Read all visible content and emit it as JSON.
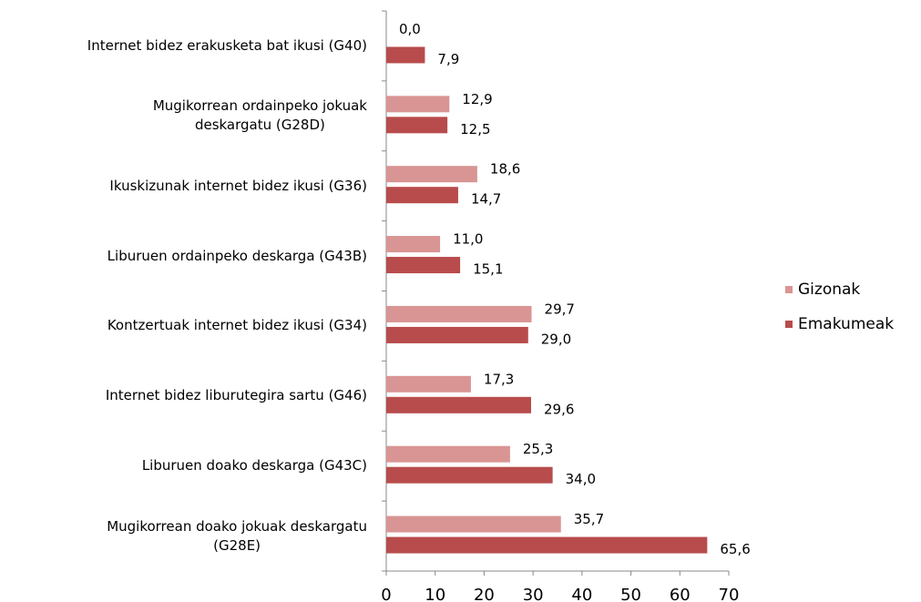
{
  "chart_data": {
    "type": "bar",
    "orientation": "horizontal",
    "categories": [
      "Internet bidez erakusketa bat ikusi (G40)",
      "Mugikorrean ordainpeko jokuak\ndeskargatu (G28D)",
      "Ikuskizunak internet bidez ikusi (G36)",
      "Liburuen ordainpeko deskarga (G43B)",
      "Kontzertuak internet bidez ikusi (G34)",
      "Internet bidez liburutegira sartu (G46)",
      "Liburuen doako deskarga (G43C)",
      "Mugikorrean doako jokuak deskargatu\n(G28E)"
    ],
    "series": [
      {
        "name": "Gizonak",
        "color": "#d99594",
        "values": [
          0,
          12.9,
          18.6,
          11,
          29.7,
          17.3,
          25.3,
          35.7
        ],
        "value_labels": [
          "0,0",
          "12,9",
          "18,6",
          "11,0",
          "29,7",
          "17,3",
          "25,3",
          "35,7"
        ]
      },
      {
        "name": "Emakumeak",
        "color": "#b84c4c",
        "values": [
          7.9,
          12.5,
          14.7,
          15.1,
          29.0,
          29.6,
          34.0,
          65.6
        ],
        "value_labels": [
          "7,9",
          "12,5",
          "14,7",
          "15,1",
          "29,0",
          "29,6",
          "34,0",
          "65,6"
        ]
      }
    ],
    "xlim": [
      0,
      70
    ],
    "xticks": [
      0,
      10,
      20,
      30,
      40,
      50,
      60,
      70
    ],
    "legend": "right"
  }
}
